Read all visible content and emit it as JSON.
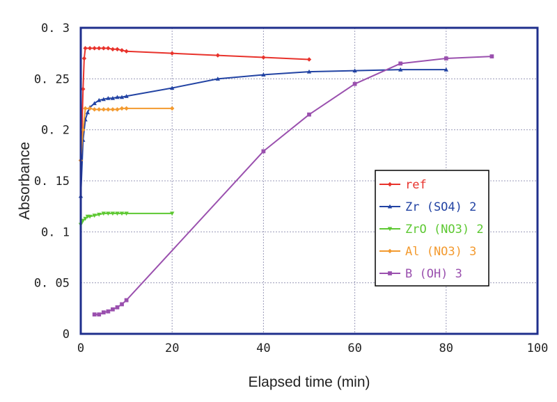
{
  "chart_data": {
    "type": "line",
    "title": "",
    "xlabel": "Elapsed time (min)",
    "ylabel": "Absorbance",
    "xlim": [
      0,
      100
    ],
    "ylim": [
      0,
      0.3
    ],
    "x_ticks": [
      "0",
      "20",
      "40",
      "60",
      "80",
      "100"
    ],
    "y_ticks": [
      "0",
      "0. 05",
      "0. 1",
      "0. 15",
      "0. 2",
      "0. 25",
      "0. 3"
    ],
    "grid": true,
    "legend_position": "right",
    "series": [
      {
        "name": "ref",
        "color": "#e8322b",
        "marker": "diamond",
        "x": [
          0,
          0.25,
          0.5,
          0.75,
          1,
          2,
          3,
          4,
          5,
          6,
          7,
          8,
          9,
          10,
          20,
          30,
          40,
          50
        ],
        "y": [
          0.17,
          0.2,
          0.24,
          0.27,
          0.28,
          0.28,
          0.28,
          0.28,
          0.28,
          0.28,
          0.279,
          0.279,
          0.278,
          0.277,
          0.275,
          0.273,
          0.271,
          0.269
        ]
      },
      {
        "name": "Zr (SO4) 2",
        "color": "#2243a3",
        "marker": "triangle",
        "x": [
          0,
          0.5,
          1,
          1.5,
          2,
          3,
          4,
          5,
          6,
          7,
          8,
          9,
          10,
          20,
          30,
          40,
          50,
          60,
          70,
          80
        ],
        "y": [
          0.135,
          0.19,
          0.21,
          0.217,
          0.222,
          0.226,
          0.229,
          0.23,
          0.231,
          0.231,
          0.232,
          0.232,
          0.233,
          0.241,
          0.25,
          0.254,
          0.257,
          0.258,
          0.259,
          0.259
        ]
      },
      {
        "name": "ZrO (NO3) 2",
        "color": "#5dc832",
        "marker": "triangle-down",
        "x": [
          0,
          0.5,
          1,
          1.5,
          2,
          3,
          4,
          5,
          6,
          7,
          8,
          9,
          10,
          20
        ],
        "y": [
          0.107,
          0.111,
          0.113,
          0.115,
          0.115,
          0.116,
          0.117,
          0.118,
          0.118,
          0.118,
          0.118,
          0.118,
          0.118,
          0.118
        ]
      },
      {
        "name": "Al (NO3) 3",
        "color": "#f39a2f",
        "marker": "diamond",
        "x": [
          0,
          0.5,
          1,
          2,
          3,
          4,
          5,
          6,
          7,
          8,
          9,
          10,
          20
        ],
        "y": [
          0.17,
          0.2,
          0.221,
          0.221,
          0.22,
          0.22,
          0.22,
          0.22,
          0.22,
          0.22,
          0.221,
          0.221,
          0.221
        ]
      },
      {
        "name": "B (OH) 3",
        "color": "#9a50ae",
        "marker": "square",
        "x": [
          3,
          4,
          5,
          6,
          7,
          8,
          9,
          10,
          40,
          50,
          60,
          70,
          80,
          90
        ],
        "y": [
          0.019,
          0.019,
          0.021,
          0.022,
          0.024,
          0.026,
          0.029,
          0.033,
          0.179,
          0.215,
          0.245,
          0.265,
          0.27,
          0.272
        ]
      }
    ]
  }
}
